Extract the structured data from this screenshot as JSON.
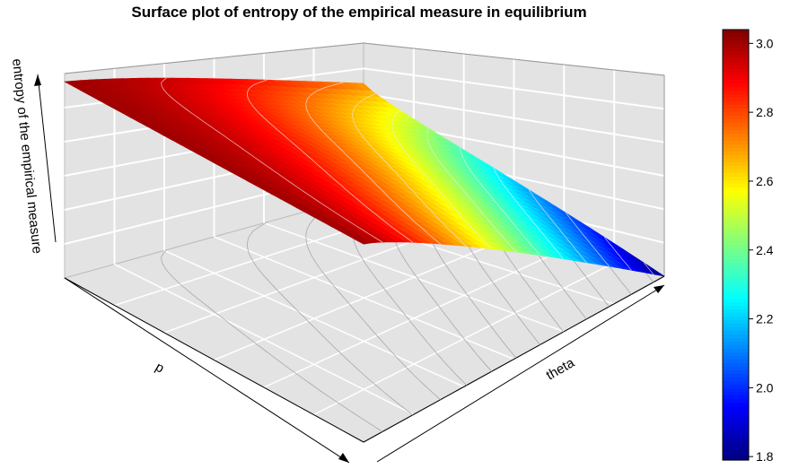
{
  "chart_data": {
    "type": "surface-3d",
    "title": "Surface plot of entropy of the empirical measure in equilibrium",
    "xlabel": "p",
    "ylabel": "theta",
    "zlabel": "entropy of the empirical measure",
    "zlim": [
      1.8,
      3.05
    ],
    "colorbar": {
      "ticks": [
        "1.8",
        "2.0",
        "2.2",
        "2.4",
        "2.6",
        "2.8",
        "3.0"
      ],
      "tick_values": [
        1.8,
        2.0,
        2.2,
        2.4,
        2.6,
        2.8,
        3.0
      ],
      "min": 1.79,
      "max": 3.04,
      "palette": [
        "#00007f",
        "#0000ff",
        "#007fff",
        "#00ffff",
        "#7fff7f",
        "#ffff00",
        "#ff7f00",
        "#ff0000",
        "#7f0000"
      ]
    },
    "corner_values": {
      "p_low_theta_low": 3.0,
      "p_low_theta_high": 2.72,
      "p_high_theta_low": 3.0,
      "p_high_theta_high": 1.8
    },
    "grid": true,
    "contours": true
  }
}
